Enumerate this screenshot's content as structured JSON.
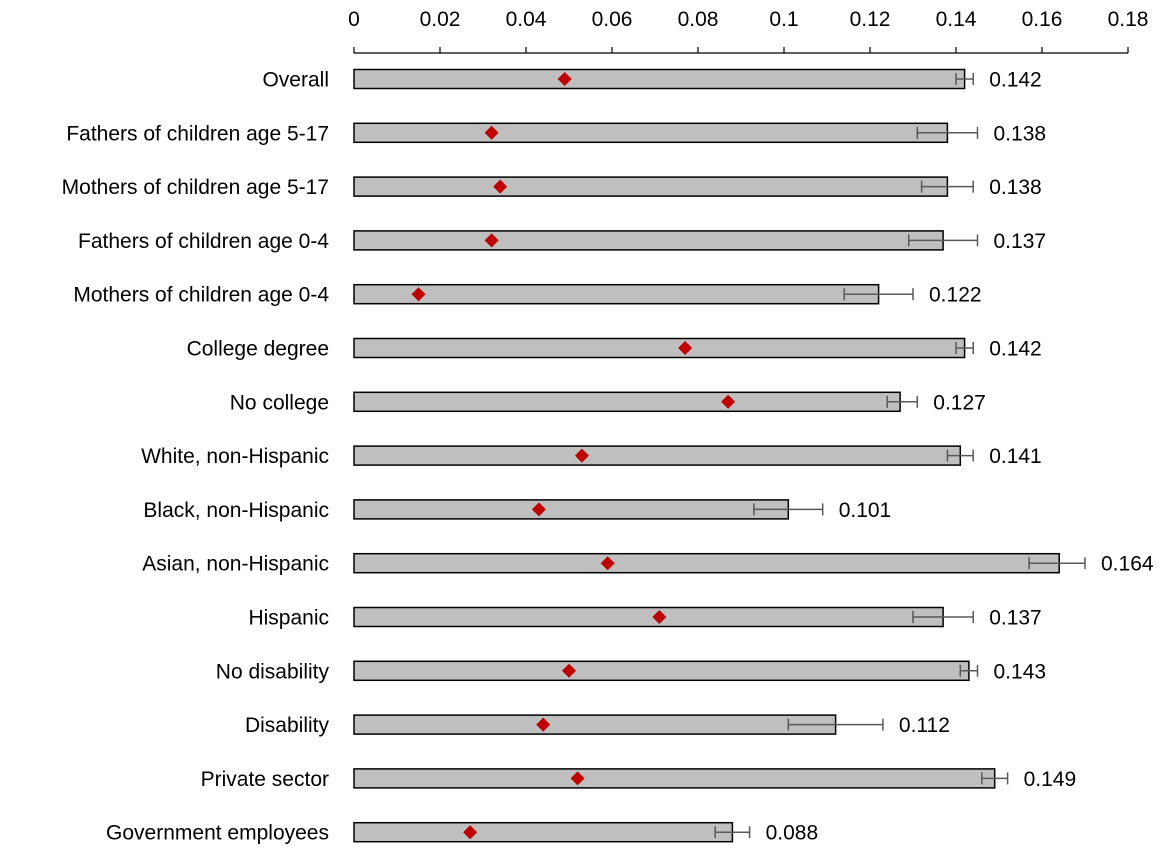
{
  "chart_data": {
    "type": "bar",
    "orientation": "horizontal",
    "xlim": [
      0,
      0.18
    ],
    "ticks": [
      0,
      0.02,
      0.04,
      0.06,
      0.08,
      0.1,
      0.12,
      0.14,
      0.16,
      0.18
    ],
    "tick_labels": [
      "0",
      "0.02",
      "0.04",
      "0.06",
      "0.08",
      "0.1",
      "0.12",
      "0.14",
      "0.16",
      "0.18"
    ],
    "axis_position": "top",
    "grid": false,
    "categories": [
      "Overall",
      "Fathers of children age 5-17",
      "Mothers of children age 5-17",
      "Fathers of children age 0-4",
      "Mothers of children age 0-4",
      "College degree",
      "No college",
      "White, non-Hispanic",
      "Black, non-Hispanic",
      "Asian, non-Hispanic",
      "Hispanic",
      "No disability",
      "Disability",
      "Private sector",
      "Government employees"
    ],
    "series": [
      {
        "type": "bar",
        "values": [
          0.142,
          0.138,
          0.138,
          0.137,
          0.122,
          0.142,
          0.127,
          0.141,
          0.101,
          0.164,
          0.137,
          0.143,
          0.112,
          0.149,
          0.088
        ],
        "value_labels": [
          "0.142",
          "0.138",
          "0.138",
          "0.137",
          "0.122",
          "0.142",
          "0.127",
          "0.141",
          "0.101",
          "0.164",
          "0.137",
          "0.143",
          "0.112",
          "0.149",
          "0.088"
        ],
        "error_low": [
          0.14,
          0.131,
          0.132,
          0.129,
          0.114,
          0.14,
          0.124,
          0.138,
          0.093,
          0.157,
          0.13,
          0.141,
          0.101,
          0.146,
          0.084
        ],
        "error_high": [
          0.144,
          0.145,
          0.144,
          0.145,
          0.13,
          0.144,
          0.131,
          0.144,
          0.109,
          0.17,
          0.144,
          0.145,
          0.123,
          0.152,
          0.092
        ],
        "color": "#bfbfbf"
      },
      {
        "type": "marker",
        "marker": "diamond",
        "values": [
          0.049,
          0.032,
          0.034,
          0.032,
          0.015,
          0.077,
          0.087,
          0.053,
          0.043,
          0.059,
          0.071,
          0.05,
          0.044,
          0.052,
          0.027
        ],
        "color": "#c00000"
      }
    ]
  }
}
